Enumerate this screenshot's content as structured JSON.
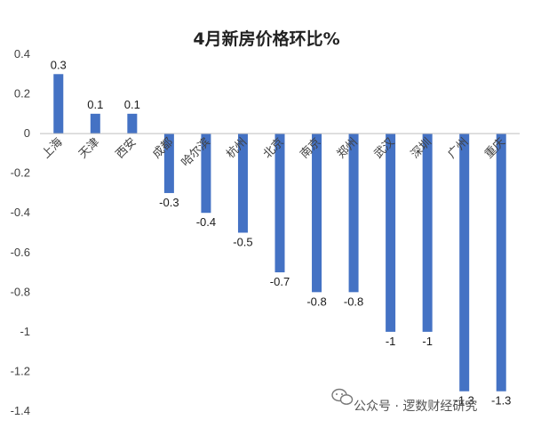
{
  "chart_data": {
    "type": "bar",
    "title": "4月新房价格环比%",
    "categories": [
      "上海",
      "天津",
      "西安",
      "成都",
      "哈尔滨",
      "杭州",
      "北京",
      "南京",
      "郑州",
      "武汉",
      "深圳",
      "广州",
      "重庆"
    ],
    "values": [
      0.3,
      0.1,
      0.1,
      -0.3,
      -0.4,
      -0.5,
      -0.7,
      -0.8,
      -0.8,
      -1,
      -1,
      -1.3,
      -1.3
    ],
    "data_labels": [
      "0.3",
      "0.1",
      "0.1",
      "-0.3",
      "-0.4",
      "-0.5",
      "-0.7",
      "-0.8",
      "-0.8",
      "-1",
      "-1",
      "-1.3",
      "-1.3"
    ],
    "ylim": [
      -1.4,
      0.4
    ],
    "yticks": [
      "0.4",
      "0.2",
      "0",
      "-0.2",
      "-0.4",
      "-0.6",
      "-0.8",
      "-1",
      "-1.2",
      "-1.4"
    ],
    "xlabel": "",
    "ylabel": "",
    "grid": false,
    "legend": "none",
    "bar_color": "#4472C4"
  },
  "watermark": {
    "text": "公众号 · 逻数财经研究",
    "icon": "wechat-icon"
  }
}
